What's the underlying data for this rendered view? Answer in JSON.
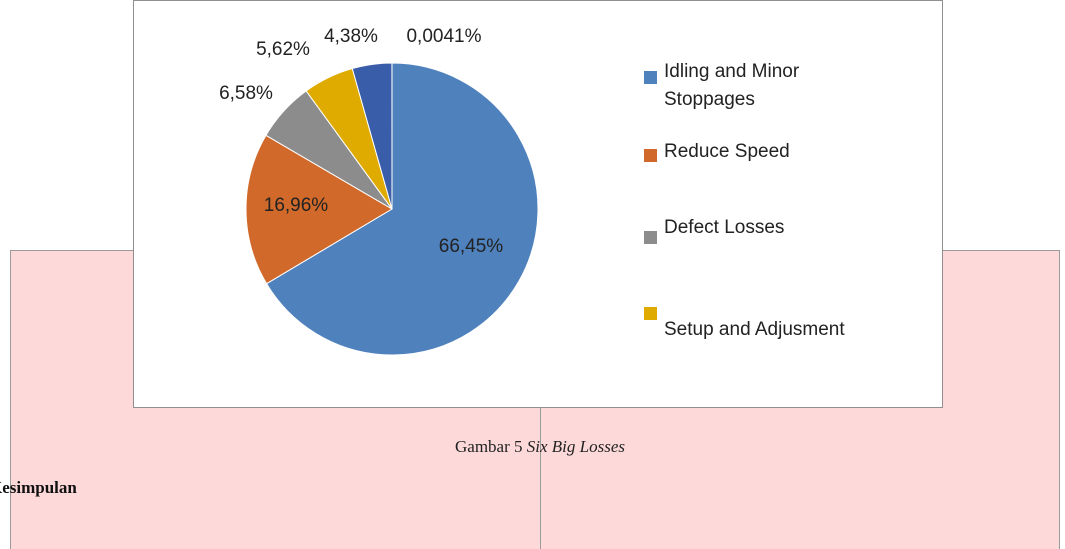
{
  "chart_data": {
    "type": "pie",
    "categories": [
      "Idling and Minor Stoppages",
      "Reduce Speed",
      "Defect Losses",
      "Setup and Adjusment",
      null,
      null
    ],
    "values": [
      66.45,
      16.96,
      6.58,
      5.62,
      4.38,
      0.0041
    ],
    "value_labels": [
      "66,45%",
      "16,96%",
      "6,58%",
      "5,62%",
      "4,38%",
      "0,0041%"
    ],
    "colors": [
      "#4f81bd",
      "#d0692a",
      "#8c8c8c",
      "#e0ab00",
      "#3a5daa",
      "#9a9a9a"
    ],
    "legend": "right"
  },
  "caption": {
    "label": "Gambar 5",
    "title": "Six Big Losses"
  },
  "section": {
    "heading": "Kesimpulan"
  }
}
